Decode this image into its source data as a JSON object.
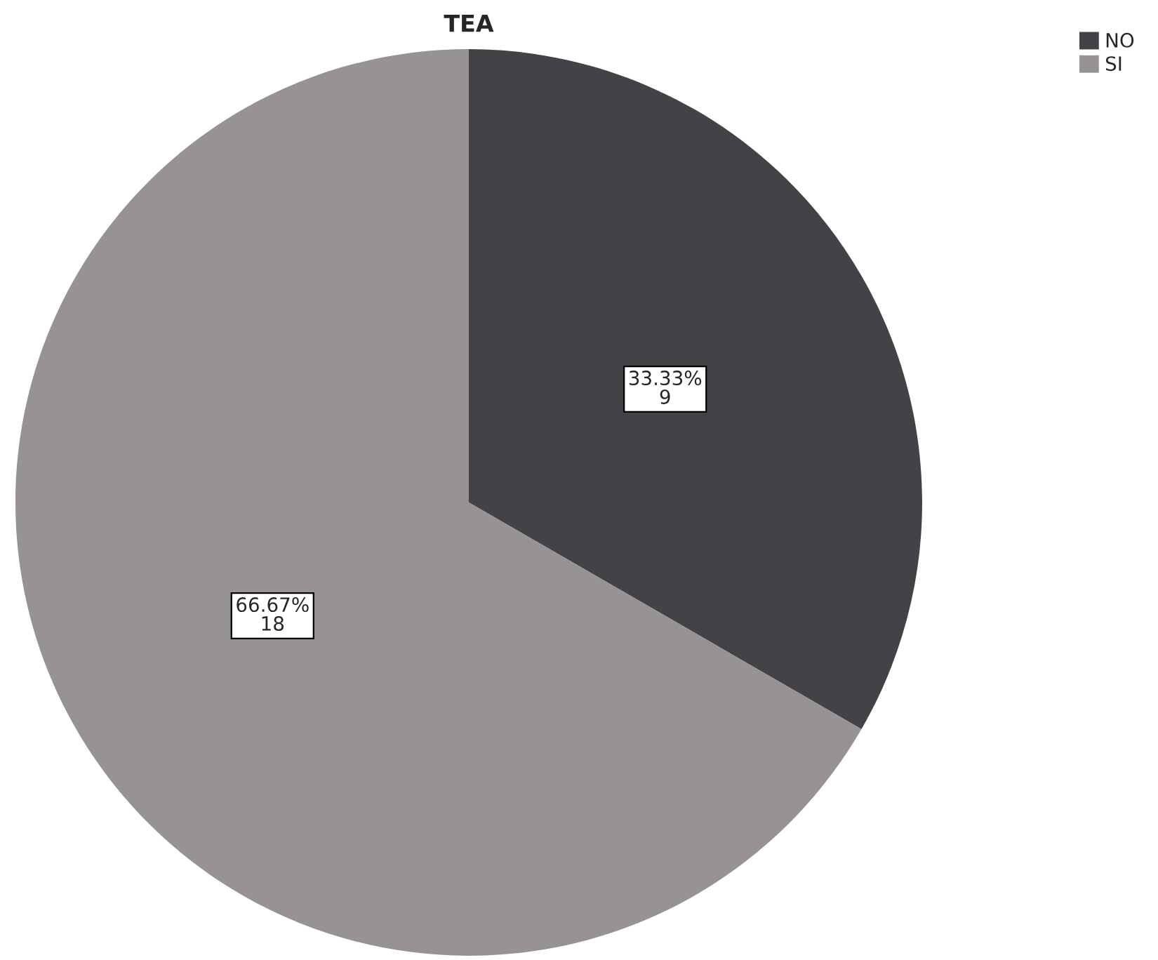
{
  "chart_data": {
    "type": "pie",
    "title": "TEA",
    "categories": [
      "NO",
      "SI"
    ],
    "values": [
      9,
      18
    ],
    "colors": [
      "#434347",
      "#979394"
    ],
    "value_labels": [
      "33.33%\n9",
      "66.67%\n18"
    ],
    "legend": "top right"
  }
}
